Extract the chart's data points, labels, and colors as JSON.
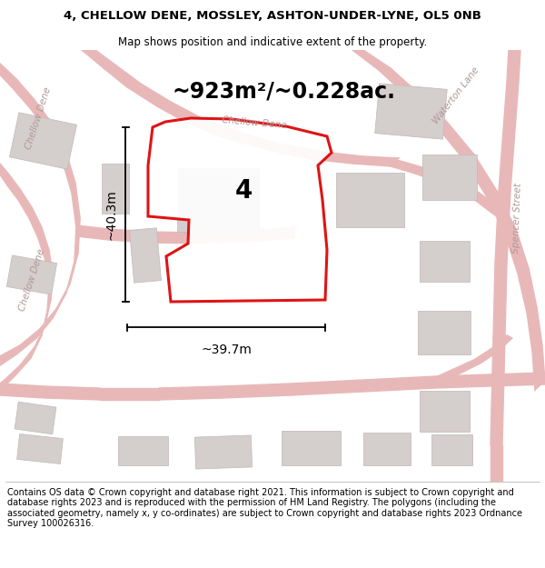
{
  "title_line1": "4, CHELLOW DENE, MOSSLEY, ASHTON-UNDER-LYNE, OL5 0NB",
  "title_line2": "Map shows position and indicative extent of the property.",
  "footer_text": "Contains OS data © Crown copyright and database right 2021. This information is subject to Crown copyright and database rights 2023 and is reproduced with the permission of HM Land Registry. The polygons (including the associated geometry, namely x, y co-ordinates) are subject to Crown copyright and database rights 2023 Ordnance Survey 100026316.",
  "area_label": "~923m²/~0.228ac.",
  "property_number": "4",
  "dim_vertical": "~40.3m",
  "dim_horizontal": "~39.7m",
  "map_bg": "#f7f4f4",
  "road_color": "#e8b8b8",
  "building_color": "#d4cecc",
  "building_edge": "#c8c0be",
  "boundary_color": "#dd0000",
  "street_label_color": "#b09898",
  "title_fontsize": 9.5,
  "footer_fontsize": 7.0
}
